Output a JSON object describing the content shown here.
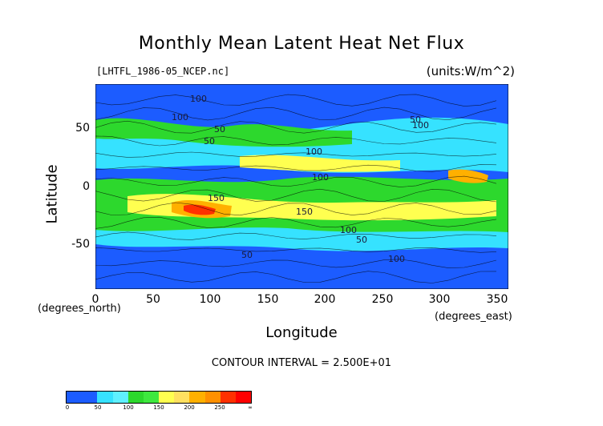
{
  "figure": {
    "title": "Monthly Mean Latent Heat Net Flux",
    "file_label": "[LHTFL_1986-05_NCEP.nc]",
    "units_label": "(units:W/m^2)",
    "xlabel": "Longitude",
    "ylabel": "Latitude",
    "x_units": "(degrees_east)",
    "y_units": "(degrees_north)",
    "contour_interval": "CONTOUR INTERVAL = 2.500E+01"
  },
  "chart_data": {
    "type": "heatmap",
    "title": "Monthly Mean Latent Heat Net Flux",
    "xlabel": "Longitude",
    "ylabel": "Latitude",
    "xlim": [
      0,
      360
    ],
    "ylim": [
      -90,
      90
    ],
    "x_ticks": [
      "0",
      "50",
      "100",
      "150",
      "200",
      "250",
      "300",
      "350"
    ],
    "y_ticks": [
      "50",
      "0",
      "-50"
    ],
    "contour_labels": [
      "100",
      "100",
      "50",
      "50",
      "100",
      "100",
      "150",
      "150",
      "100",
      "50",
      "100",
      "50",
      "50",
      "100"
    ],
    "colorbar": {
      "tick_labels": [
        "0",
        "50",
        "100",
        "150",
        "200",
        "250",
        "∞"
      ],
      "colors": [
        "#1c5cff",
        "#36e2ff",
        "#2dd82d",
        "#ffff50",
        "#ffb000",
        "#ff0000"
      ],
      "boundaries": [
        0,
        25,
        50,
        75,
        100,
        125,
        150,
        175,
        200,
        225,
        250,
        275
      ]
    }
  }
}
